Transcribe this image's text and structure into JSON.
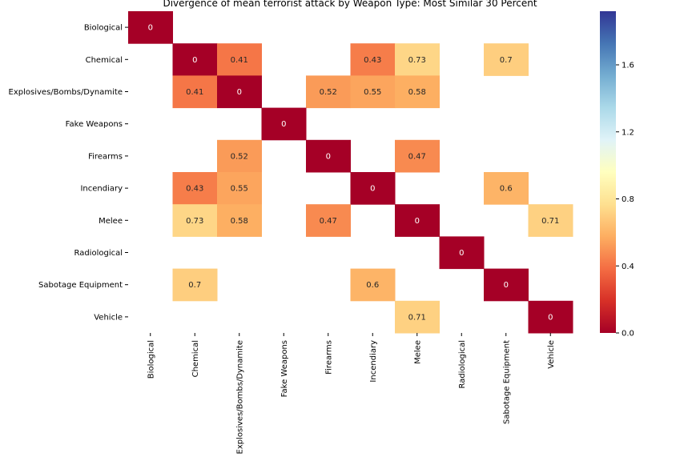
{
  "chart_data": {
    "type": "heatmap",
    "title": "Divergence of mean terrorist attack by Weapon Type: Most Similar 30 Percent",
    "row_labels": [
      "Biological",
      "Chemical",
      "Explosives/Bombs/Dynamite",
      "Fake Weapons",
      "Firearms",
      "Incendiary",
      "Melee",
      "Radiological",
      "Sabotage Equipment",
      "Vehicle "
    ],
    "col_labels": [
      "Biological",
      "Chemical",
      "Explosives/Bombs/Dynamite",
      "Fake Weapons",
      "Firearms",
      "Incendiary",
      "Melee",
      "Radiological",
      "Sabotage Equipment",
      "Vehicle"
    ],
    "values": [
      [
        0,
        null,
        null,
        null,
        null,
        null,
        null,
        null,
        null,
        null
      ],
      [
        null,
        0,
        0.41,
        null,
        null,
        0.43,
        0.73,
        null,
        0.7,
        null
      ],
      [
        null,
        0.41,
        0,
        null,
        0.52,
        0.55,
        0.58,
        null,
        null,
        null
      ],
      [
        null,
        null,
        null,
        0,
        null,
        null,
        null,
        null,
        null,
        null
      ],
      [
        null,
        null,
        0.52,
        null,
        0,
        null,
        0.47,
        null,
        null,
        null
      ],
      [
        null,
        0.43,
        0.55,
        null,
        null,
        0,
        null,
        null,
        0.6,
        null
      ],
      [
        null,
        0.73,
        0.58,
        null,
        0.47,
        null,
        0,
        null,
        null,
        0.71
      ],
      [
        null,
        null,
        null,
        null,
        null,
        null,
        null,
        0,
        null,
        null
      ],
      [
        null,
        0.7,
        null,
        null,
        null,
        0.6,
        null,
        null,
        0,
        null
      ],
      [
        null,
        null,
        null,
        null,
        null,
        null,
        0.71,
        null,
        null,
        0
      ]
    ],
    "colormap": "RdYlBu",
    "colorbar": {
      "min": 0,
      "max": 1.92,
      "ticks": [
        0.0,
        0.4,
        0.8,
        1.2,
        1.6
      ],
      "tick_labels": [
        "0.0",
        "0.4",
        "0.8",
        "1.2",
        "1.6"
      ]
    }
  }
}
